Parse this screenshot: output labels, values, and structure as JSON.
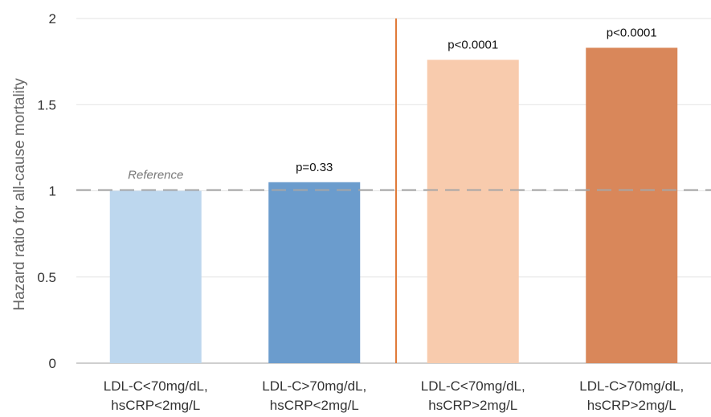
{
  "chart_data": {
    "type": "bar",
    "ylabel": "Hazard ratio for all-cause mortality",
    "ylim": [
      0,
      2
    ],
    "yticks": [
      "0",
      "0.5",
      "1",
      "1.5",
      "2"
    ],
    "grid": true,
    "reference_line": 1,
    "reference_label": "Reference",
    "categories": [
      [
        "LDL-C<70mg/dL,",
        "hsCRP<2mg/L"
      ],
      [
        "LDL-C>70mg/dL,",
        "hsCRP<2mg/L"
      ],
      [
        "LDL-C<70mg/dL,",
        "hsCRP>2mg/L"
      ],
      [
        "LDL-C>70mg/dL,",
        "hsCRP>2mg/L"
      ]
    ],
    "values": [
      1.0,
      1.05,
      1.76,
      1.83
    ],
    "p_values": [
      "",
      "p=0.33",
      "p<0.0001",
      "p<0.0001"
    ],
    "colors": [
      "#bdd7ee",
      "#6b9ccd",
      "#f8cbad",
      "#d9875a"
    ],
    "divider_color": "#e07b39"
  }
}
